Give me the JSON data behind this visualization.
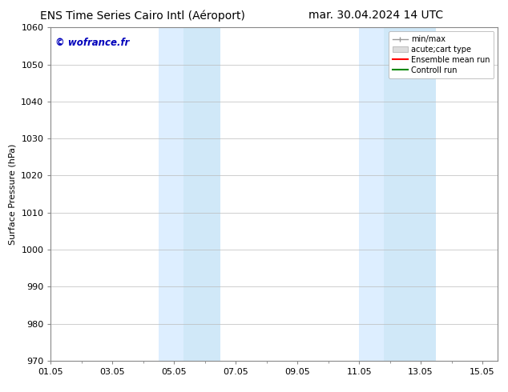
{
  "title_left": "ENS Time Series Cairo Intl (Aéroport)",
  "title_right": "mar. 30.04.2024 14 UTC",
  "ylabel": "Surface Pressure (hPa)",
  "ylim": [
    970,
    1060
  ],
  "yticks": [
    970,
    980,
    990,
    1000,
    1010,
    1020,
    1030,
    1040,
    1050,
    1060
  ],
  "xlim_min": 0.0,
  "xlim_max": 14.5,
  "xtick_labels": [
    "01.05",
    "03.05",
    "05.05",
    "07.05",
    "09.05",
    "11.05",
    "13.05",
    "15.05"
  ],
  "xtick_positions": [
    0,
    2,
    4,
    6,
    8,
    10,
    12,
    14
  ],
  "shaded_bands": [
    {
      "x_start": 3.5,
      "x_end": 4.3,
      "color": "#ddeeff"
    },
    {
      "x_start": 4.3,
      "x_end": 5.5,
      "color": "#cce0f5"
    },
    {
      "x_start": 10.0,
      "x_end": 10.8,
      "color": "#ddeeff"
    },
    {
      "x_start": 10.8,
      "x_end": 12.5,
      "color": "#cce0f5"
    }
  ],
  "watermark_text": "© wofrance.fr",
  "watermark_color": "#0000bb",
  "background_color": "#ffffff",
  "plot_bg_color": "#ffffff",
  "grid_color": "#bbbbbb",
  "legend_entries": [
    {
      "label": "min/max"
    },
    {
      "label": "acute;cart type"
    },
    {
      "label": "Ensemble mean run"
    },
    {
      "label": "Controll run"
    }
  ],
  "title_fontsize": 10,
  "axis_fontsize": 8,
  "tick_fontsize": 8,
  "legend_fontsize": 7
}
